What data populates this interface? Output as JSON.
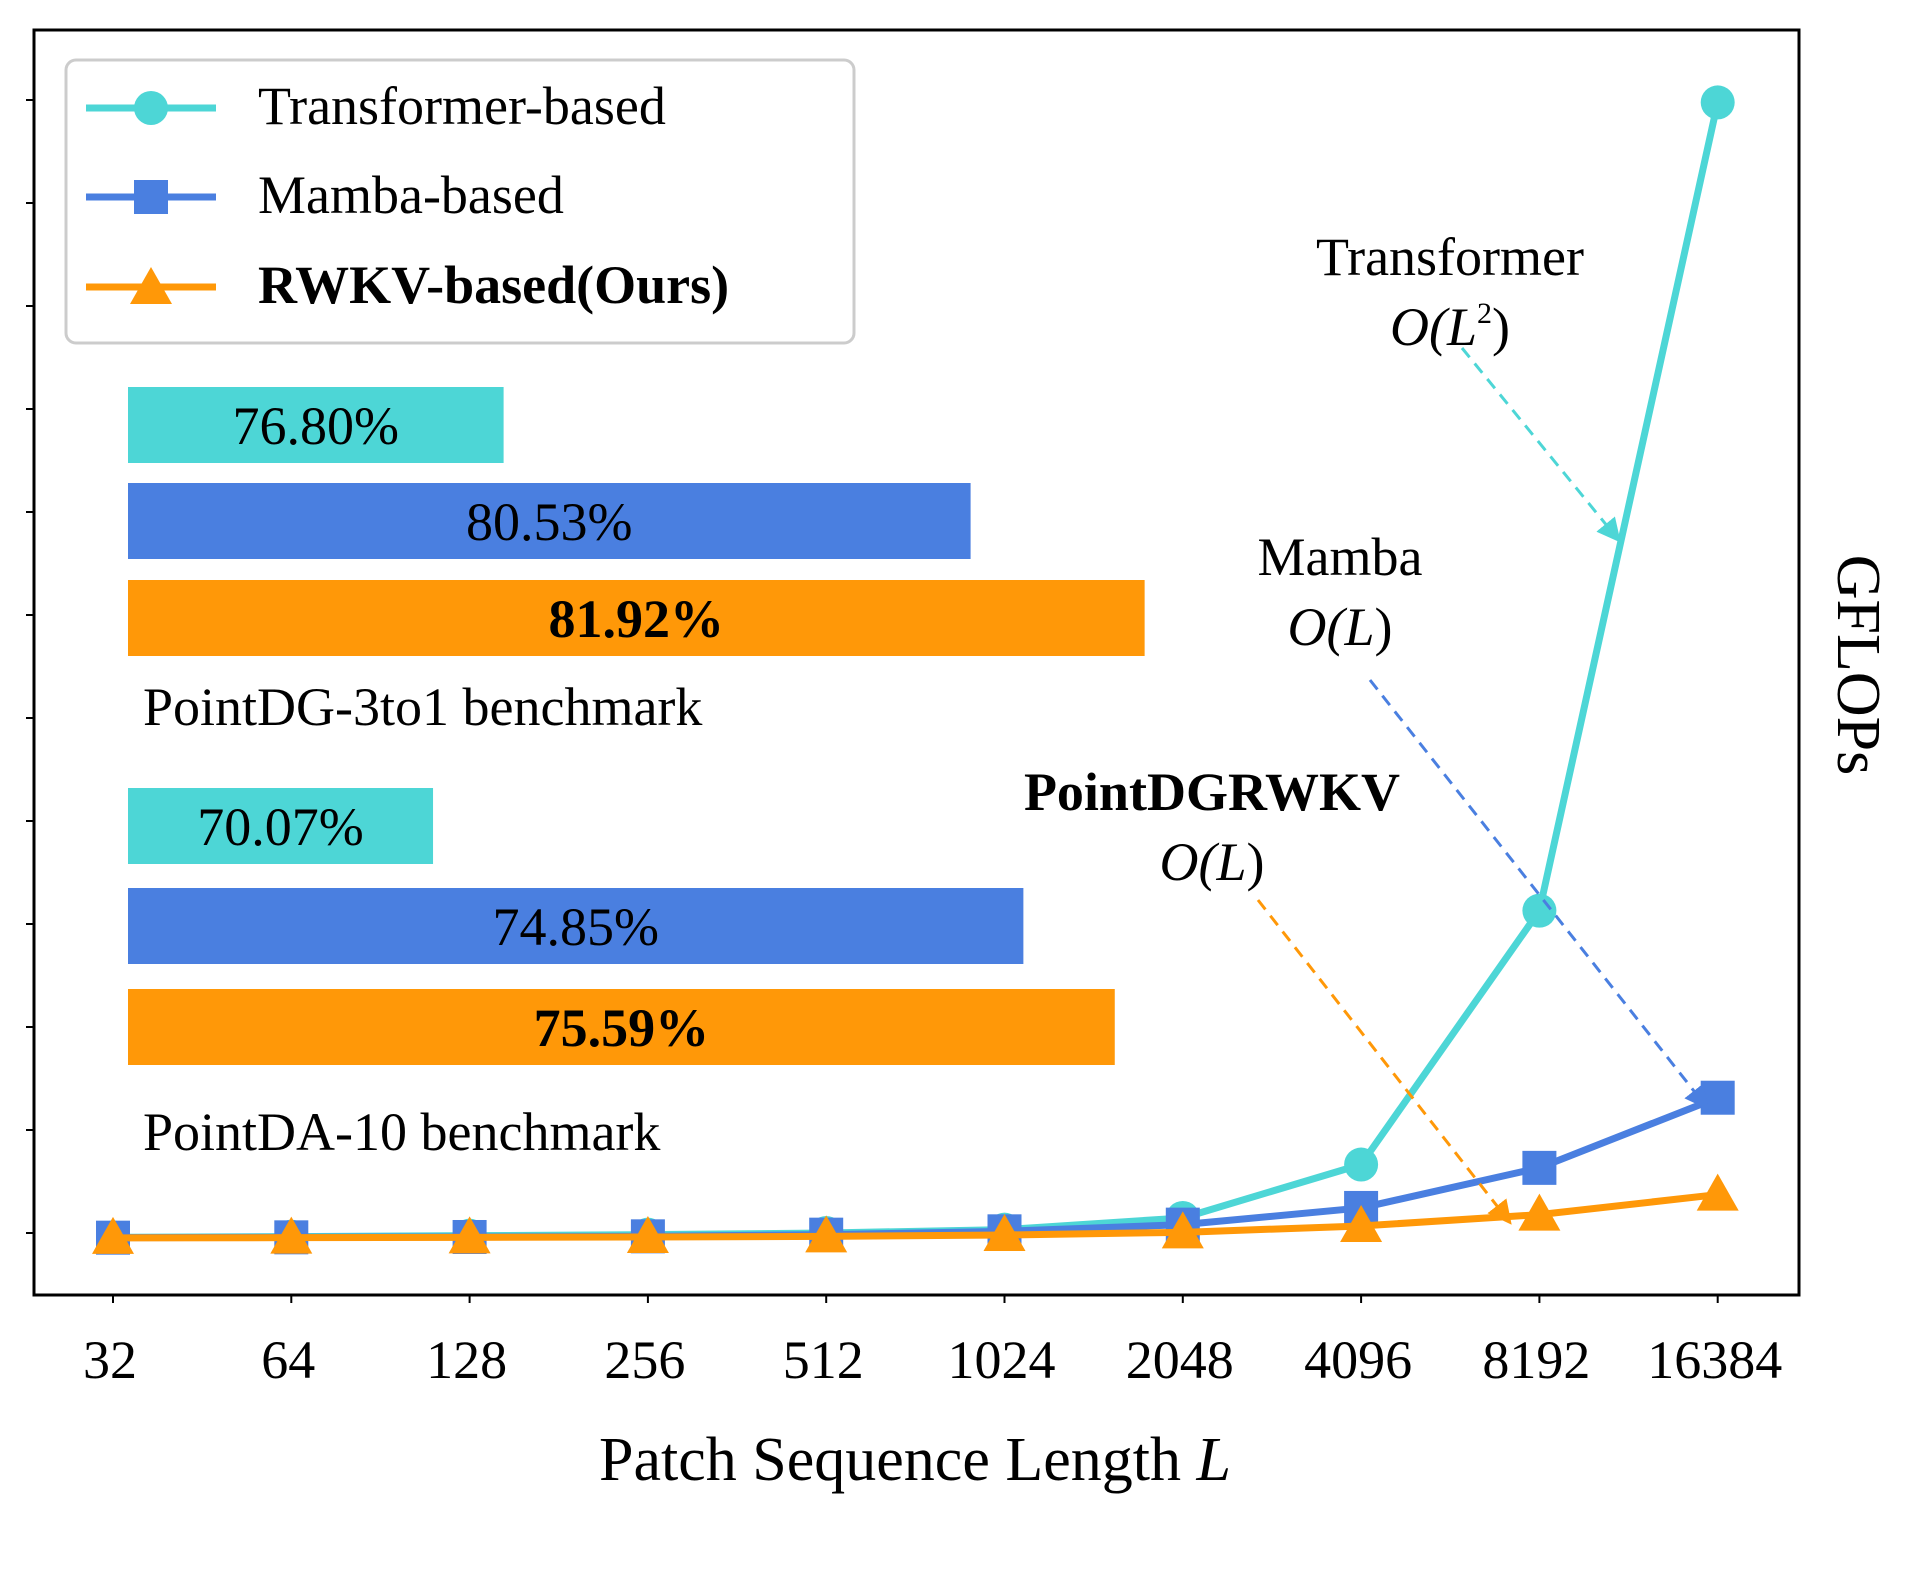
{
  "chart_data": {
    "type": "line",
    "x_categories": [
      "32",
      "64",
      "128",
      "256",
      "512",
      "1024",
      "2048",
      "4096",
      "8192",
      "16384"
    ],
    "xlabel_text": "Patch Sequence Length ",
    "xlabel_var": "L",
    "ylabel": "GFLOPs",
    "y_ticks_labeled": false,
    "grid": false,
    "legend_position": "top-left",
    "series": [
      {
        "name": "Transformer-based",
        "marker": "circle",
        "color": "#4dd6d6",
        "bold": false,
        "values": [
          0.2,
          0.4,
          0.7,
          1.0,
          1.5,
          2.5,
          6.0,
          22.0,
          98.0,
          340.0
        ]
      },
      {
        "name": "Mamba-based",
        "marker": "square",
        "color": "#4a7fe0",
        "bold": false,
        "values": [
          0.1,
          0.2,
          0.3,
          0.5,
          1.0,
          2.0,
          4.0,
          9.0,
          21.0,
          42.0
        ]
      },
      {
        "name": "RWKV-based(Ours)",
        "marker": "triangle",
        "color": "#ff9808",
        "bold": true,
        "values": [
          0.05,
          0.1,
          0.2,
          0.3,
          0.5,
          0.9,
          1.7,
          3.6,
          7.0,
          13.0
        ]
      }
    ],
    "annotations": [
      {
        "line1": "Transformer",
        "line2_base": "O(L",
        "line2_sup": "2",
        "line2_end": ")",
        "color": "#4dd6d6",
        "bold": false
      },
      {
        "line1": "Mamba",
        "line2_base": "O(L",
        "line2_sup": "",
        "line2_end": ")",
        "color": "#4a7fe0",
        "bold": false
      },
      {
        "line1": "PointDGRWKV",
        "line2_base": "O(L",
        "line2_sup": "",
        "line2_end": ")",
        "color": "#ff9808",
        "bold": true
      }
    ],
    "benchmarks": [
      {
        "name": "PointDG-3to1 benchmark",
        "bars": [
          {
            "label": "76.80%",
            "value": 76.8,
            "color": "#4dd6d6",
            "bold": false
          },
          {
            "label": "80.53%",
            "value": 80.53,
            "color": "#4a7fe0",
            "bold": false
          },
          {
            "label": "81.92%",
            "value": 81.92,
            "color": "#ff9808",
            "bold": true
          }
        ]
      },
      {
        "name": "PointDA-10 benchmark",
        "bars": [
          {
            "label": "70.07%",
            "value": 70.07,
            "color": "#4dd6d6",
            "bold": false
          },
          {
            "label": "74.85%",
            "value": 74.85,
            "color": "#4a7fe0",
            "bold": false
          },
          {
            "label": "75.59%",
            "value": 75.59,
            "color": "#ff9808",
            "bold": true
          }
        ]
      }
    ]
  }
}
